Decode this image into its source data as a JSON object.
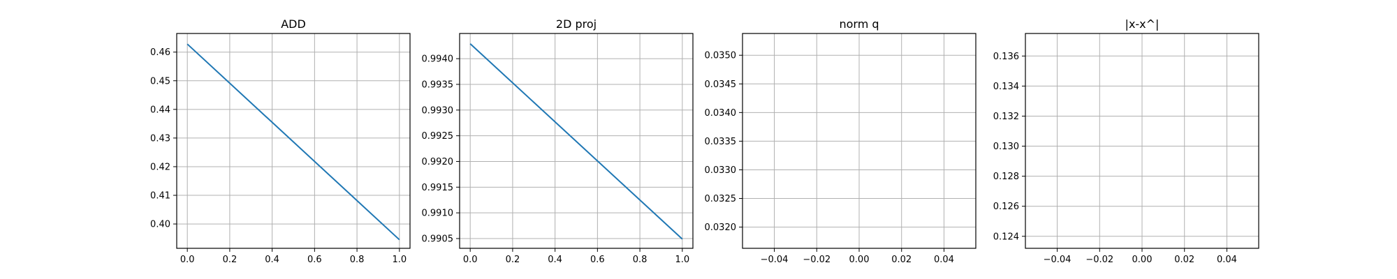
{
  "chart_data": [
    {
      "type": "line",
      "title": "ADD",
      "xlabel": "",
      "ylabel": "",
      "xlim": [
        -0.05,
        1.05
      ],
      "ylim": [
        0.3915,
        0.4665
      ],
      "xticks": [
        0.0,
        0.2,
        0.4,
        0.6,
        0.8,
        1.0
      ],
      "xtick_labels": [
        "0.0",
        "0.2",
        "0.4",
        "0.6",
        "0.8",
        "1.0"
      ],
      "yticks": [
        0.4,
        0.41,
        0.42,
        0.43,
        0.44,
        0.45,
        0.46
      ],
      "ytick_labels": [
        "0.40",
        "0.41",
        "0.42",
        "0.43",
        "0.44",
        "0.45",
        "0.46"
      ],
      "grid": true,
      "series": [
        {
          "x": [
            0.0,
            1.0
          ],
          "y": [
            0.4628,
            0.3945
          ],
          "color": "#1f77b4"
        }
      ]
    },
    {
      "type": "line",
      "title": "2D proj",
      "xlabel": "",
      "ylabel": "",
      "xlim": [
        -0.05,
        1.05
      ],
      "ylim": [
        0.99031,
        0.99449
      ],
      "xticks": [
        0.0,
        0.2,
        0.4,
        0.6,
        0.8,
        1.0
      ],
      "xtick_labels": [
        "0.0",
        "0.2",
        "0.4",
        "0.6",
        "0.8",
        "1.0"
      ],
      "yticks": [
        0.9905,
        0.991,
        0.9915,
        0.992,
        0.9925,
        0.993,
        0.9935,
        0.994
      ],
      "ytick_labels": [
        "0.9905",
        "0.9910",
        "0.9915",
        "0.9920",
        "0.9925",
        "0.9930",
        "0.9935",
        "0.9940"
      ],
      "grid": true,
      "series": [
        {
          "x": [
            0.0,
            1.0
          ],
          "y": [
            0.99429,
            0.99049
          ],
          "color": "#1f77b4"
        }
      ]
    },
    {
      "type": "line",
      "title": "norm q",
      "xlabel": "",
      "ylabel": "",
      "xlim": [
        -0.055,
        0.055
      ],
      "ylim": [
        0.03163,
        0.03538
      ],
      "xticks": [
        -0.04,
        -0.02,
        0.0,
        0.02,
        0.04
      ],
      "xtick_labels": [
        "−0.04",
        "−0.02",
        "0.00",
        "0.02",
        "0.04"
      ],
      "yticks": [
        0.032,
        0.0325,
        0.033,
        0.0335,
        0.034,
        0.0345,
        0.035
      ],
      "ytick_labels": [
        "0.0320",
        "0.0325",
        "0.0330",
        "0.0335",
        "0.0340",
        "0.0345",
        "0.0350"
      ],
      "grid": true,
      "series": []
    },
    {
      "type": "line",
      "title": "|x-x^|",
      "xlabel": "",
      "ylabel": "",
      "xlim": [
        -0.055,
        0.055
      ],
      "ylim": [
        0.1232,
        0.1375
      ],
      "xticks": [
        -0.04,
        -0.02,
        0.0,
        0.02,
        0.04
      ],
      "xtick_labels": [
        "−0.04",
        "−0.02",
        "0.00",
        "0.02",
        "0.04"
      ],
      "yticks": [
        0.124,
        0.126,
        0.128,
        0.13,
        0.132,
        0.134,
        0.136
      ],
      "ytick_labels": [
        "0.124",
        "0.126",
        "0.128",
        "0.130",
        "0.132",
        "0.134",
        "0.136"
      ],
      "grid": true,
      "series": []
    }
  ]
}
